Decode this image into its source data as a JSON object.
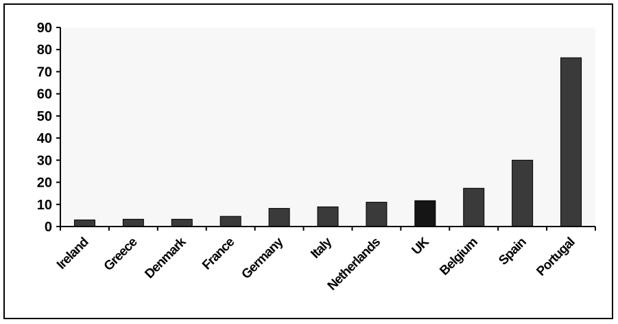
{
  "chart_data": {
    "type": "bar",
    "categories": [
      "Ireland",
      "Greece",
      "Denmark",
      "France",
      "Germany",
      "Italy",
      "Netherlands",
      "UK",
      "Belgium",
      "Spain",
      "Portugal"
    ],
    "values": [
      3,
      3.3,
      3.3,
      4.6,
      8.2,
      8.9,
      11,
      11.7,
      17.3,
      30,
      76.3
    ],
    "ylim": [
      0,
      90
    ],
    "yticks": [
      0,
      10,
      20,
      30,
      40,
      50,
      60,
      70,
      80,
      90
    ],
    "grid": false,
    "title": "",
    "xlabel": "",
    "ylabel": "",
    "colors": {
      "bar": "#3a3a3a",
      "highlight_bar": "#151515",
      "highlight_category": "UK",
      "plot_area": "#f7f7f7",
      "axis": "#000000"
    }
  }
}
